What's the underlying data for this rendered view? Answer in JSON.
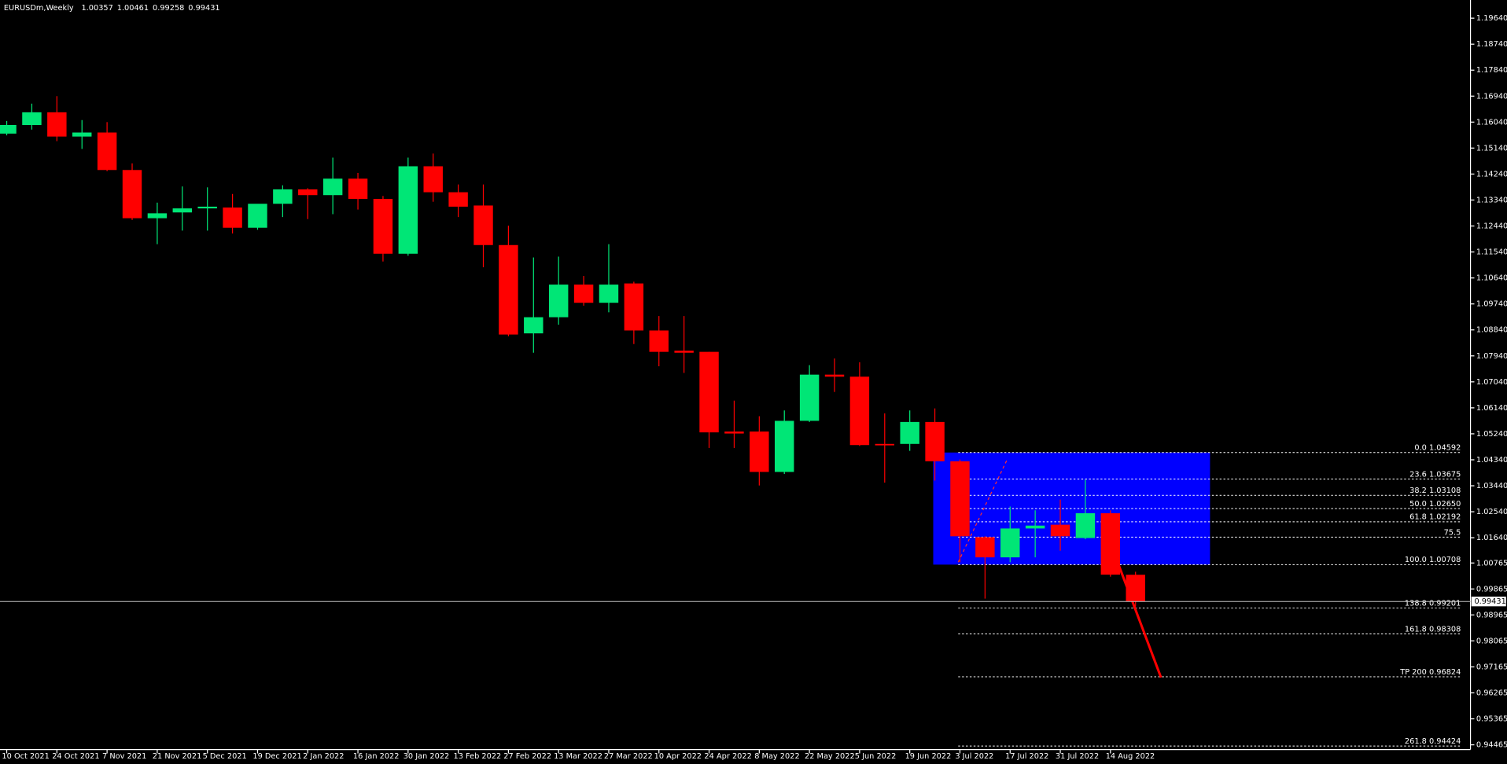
{
  "chart_data": {
    "type": "candlestick",
    "title": "EURUSDm,Weekly",
    "categories": [
      "10 Oct 2021",
      null,
      "24 Oct 2021",
      null,
      "7 Nov 2021",
      null,
      "21 Nov 2021",
      null,
      "5 Dec 2021",
      null,
      "19 Dec 2021",
      null,
      "2 Jan 2022",
      null,
      "16 Jan 2022",
      null,
      "30 Jan 2022",
      null,
      "13 Feb 2022",
      null,
      "27 Feb 2022",
      null,
      "13 Mar 2022",
      null,
      "27 Mar 2022",
      null,
      "10 Apr 2022",
      null,
      "24 Apr 2022",
      null,
      "8 May 2022",
      null,
      "22 May 2022",
      null,
      "5 Jun 2022",
      null,
      "19 Jun 2022",
      null,
      "3 Jul 2022",
      null,
      "17 Jul 2022",
      null,
      "31 Jul 2022",
      null,
      "14 Aug 2022",
      null
    ],
    "open": [
      1.1564,
      1.1594,
      1.1638,
      1.1554,
      1.1568,
      1.1438,
      1.1271,
      1.1291,
      1.1305,
      1.1308,
      1.1238,
      1.1321,
      1.1371,
      1.1351,
      1.1408,
      1.1338,
      1.1148,
      1.1451,
      1.1361,
      1.1315,
      1.1178,
      1.0872,
      1.0928,
      1.1041,
      1.0978,
      1.1045,
      1.0882,
      1.0812,
      1.0808,
      1.0532,
      1.0532,
      1.0392,
      1.0569,
      1.0729,
      1.0722,
      1.0489,
      1.0489,
      1.0565,
      1.0429,
      1.0166,
      1.0096,
      1.0196,
      1.0209,
      1.0163,
      1.0249,
      1.00357
    ],
    "high": [
      1.1608,
      1.1668,
      1.1694,
      1.1611,
      1.1604,
      1.1461,
      1.1325,
      1.1381,
      1.1378,
      1.1355,
      1.1315,
      1.1385,
      1.1375,
      1.1481,
      1.1428,
      1.1348,
      1.1481,
      1.1495,
      1.1388,
      1.1388,
      1.1245,
      1.1135,
      1.1138,
      1.1071,
      1.1181,
      1.1051,
      1.0932,
      1.0932,
      1.0808,
      1.0639,
      1.0585,
      1.0605,
      1.0762,
      1.0785,
      1.0772,
      1.0595,
      1.0605,
      1.0612,
      1.0435,
      1.0169,
      1.0272,
      1.0259,
      1.0296,
      1.0365,
      1.0259,
      1.00461
    ],
    "low": [
      1.1558,
      1.1578,
      1.1538,
      1.1511,
      1.1434,
      1.1265,
      1.1181,
      1.1228,
      1.1228,
      1.1218,
      1.1231,
      1.1275,
      1.1268,
      1.1285,
      1.1301,
      1.1121,
      1.1141,
      1.1328,
      1.1275,
      1.1101,
      1.0862,
      1.0805,
      1.0902,
      1.0968,
      1.0945,
      1.0835,
      1.0758,
      1.0735,
      1.0475,
      1.0475,
      1.0345,
      1.0385,
      1.0565,
      1.0669,
      1.0482,
      1.0355,
      1.0465,
      1.0362,
      1.0079,
      0.9953,
      1.0079,
      1.0096,
      1.0119,
      1.0159,
      1.0029,
      0.99258
    ],
    "close": [
      1.1594,
      1.1638,
      1.1554,
      1.1568,
      1.1438,
      1.1271,
      1.1288,
      1.1305,
      1.1311,
      1.1238,
      1.1321,
      1.1371,
      1.1351,
      1.1408,
      1.1338,
      1.1148,
      1.1451,
      1.1361,
      1.1311,
      1.1178,
      1.0868,
      1.0928,
      1.1041,
      1.0978,
      1.1041,
      1.0882,
      1.0808,
      1.0805,
      1.0529,
      1.0525,
      1.0392,
      1.0569,
      1.0729,
      1.0722,
      1.0485,
      1.0485,
      1.0565,
      1.0429,
      1.0169,
      1.0096,
      1.0196,
      1.0206,
      1.0169,
      1.0249,
      1.0036,
      0.99431
    ],
    "up_color": "#00e676",
    "down_color": "#ff0000",
    "ylim": [
      0.943,
      1.2027
    ],
    "yticks": [
      {
        "value": 1.1964,
        "label": "1.19640"
      },
      {
        "value": 1.1874,
        "label": "1.18740"
      },
      {
        "value": 1.1784,
        "label": "1.17840"
      },
      {
        "value": 1.1694,
        "label": "1.16940"
      },
      {
        "value": 1.1604,
        "label": "1.16040"
      },
      {
        "value": 1.1514,
        "label": "1.15140"
      },
      {
        "value": 1.1424,
        "label": "1.14240"
      },
      {
        "value": 1.1334,
        "label": "1.13340"
      },
      {
        "value": 1.1244,
        "label": "1.12440"
      },
      {
        "value": 1.1154,
        "label": "1.11540"
      },
      {
        "value": 1.1064,
        "label": "1.10640"
      },
      {
        "value": 1.0974,
        "label": "1.09740"
      },
      {
        "value": 1.0884,
        "label": "1.08840"
      },
      {
        "value": 1.0794,
        "label": "1.07940"
      },
      {
        "value": 1.0704,
        "label": "1.07040"
      },
      {
        "value": 1.0614,
        "label": "1.06140"
      },
      {
        "value": 1.0524,
        "label": "1.05240"
      },
      {
        "value": 1.0434,
        "label": "1.04340"
      },
      {
        "value": 1.0344,
        "label": "1.03440"
      },
      {
        "value": 1.0254,
        "label": "1.02540"
      },
      {
        "value": 1.0164,
        "label": "1.01640"
      },
      {
        "value": 1.00765,
        "label": "1.00765"
      },
      {
        "value": 0.99865,
        "label": "0.99865"
      },
      {
        "value": 0.98965,
        "label": "0.98965"
      },
      {
        "value": 0.98065,
        "label": "0.98065"
      },
      {
        "value": 0.97165,
        "label": "0.97165"
      },
      {
        "value": 0.96265,
        "label": "0.96265"
      },
      {
        "value": 0.95365,
        "label": "0.95365"
      },
      {
        "value": 0.94465,
        "label": "0.94465"
      }
    ],
    "current_price": 0.99431,
    "fibonacci": {
      "box_color": "#0000ff",
      "levels": [
        {
          "value": 1.04592,
          "label": "0.0 1.04592"
        },
        {
          "value": 1.03675,
          "label": "23.6 1.03675"
        },
        {
          "value": 1.03108,
          "label": "38.2 1.03108"
        },
        {
          "value": 1.0265,
          "label": "50.0 1.02650"
        },
        {
          "value": 1.02192,
          "label": "61.8 1.02192"
        },
        {
          "value": 1.0166,
          "label": "75.5"
        },
        {
          "value": 1.00708,
          "label": "100.0 1.00708"
        },
        {
          "value": 0.99201,
          "label": "138.8 0.99201"
        },
        {
          "value": 0.98308,
          "label": "161.8 0.98308"
        },
        {
          "value": 0.96824,
          "label": "TP 200 0.96824"
        },
        {
          "value": 0.94424,
          "label": "261.8 0.94424"
        }
      ]
    }
  }
}
